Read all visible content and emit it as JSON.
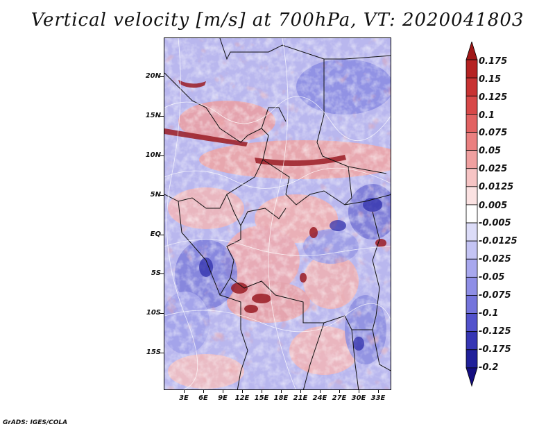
{
  "title": "Vertical velocity [m/s] at 700hPa, VT: 2020041803",
  "credit": "GrADS: IGES/COLA",
  "lat_labels": [
    "20N",
    "15N",
    "10N",
    "5N",
    "EQ",
    "5S",
    "10S",
    "15S"
  ],
  "lon_labels": [
    "3E",
    "6E",
    "9E",
    "12E",
    "15E",
    "18E",
    "21E",
    "24E",
    "27E",
    "30E",
    "33E"
  ],
  "colorbar": {
    "labels": [
      "0.175",
      "0.15",
      "0.125",
      "0.1",
      "0.075",
      "0.05",
      "0.025",
      "0.0125",
      "0.005",
      "-0.005",
      "-0.0125",
      "-0.025",
      "-0.05",
      "-0.075",
      "-0.1",
      "-0.125",
      "-0.175",
      "-0.2"
    ],
    "colors": [
      "#a01818",
      "#b52222",
      "#c83232",
      "#d84848",
      "#e26262",
      "#ea8080",
      "#f0a0a0",
      "#f6c4c4",
      "#fbe2e2",
      "#ffffff",
      "#dcdcf8",
      "#c4c4f4",
      "#a8a8ee",
      "#8e8ee6",
      "#7474dc",
      "#5252cc",
      "#3636b4",
      "#20209a",
      "#140e80"
    ]
  }
}
